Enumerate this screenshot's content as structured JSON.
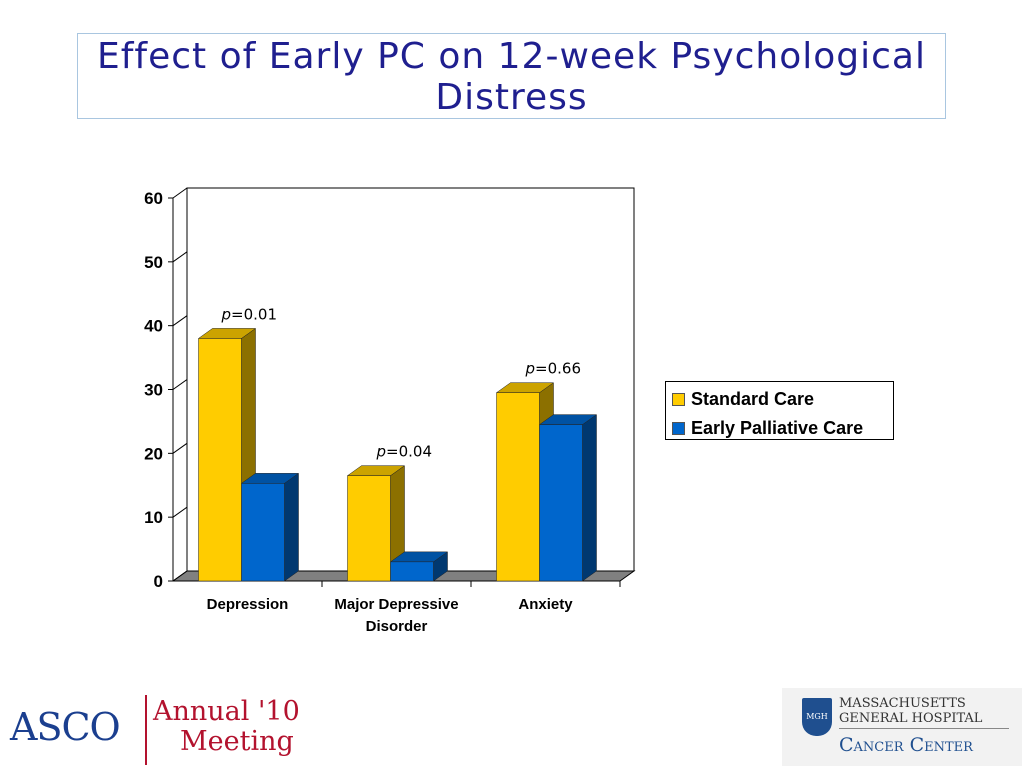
{
  "slide": {
    "title": "Effect of Early PC on 12-week Psychological Distress"
  },
  "chart_data": {
    "type": "bar",
    "title": "",
    "xlabel": "",
    "ylabel": "",
    "categories": [
      "Depression",
      "Major Depressive Disorder",
      "Anxiety"
    ],
    "category_lines": [
      [
        "Depression"
      ],
      [
        "Major Depressive",
        "Disorder"
      ],
      [
        "Anxiety"
      ]
    ],
    "series": [
      {
        "name": "Standard Care",
        "values": [
          38,
          16.5,
          29.5
        ],
        "color": "#ffcc00"
      },
      {
        "name": "Early Palliative Care",
        "values": [
          15.3,
          3,
          24.5
        ],
        "color": "#0066cc"
      }
    ],
    "annotations": [
      {
        "prefix": "p",
        "text": "=0.01"
      },
      {
        "prefix": "p",
        "text": "=0.04"
      },
      {
        "prefix": "p",
        "text": "=0.66"
      }
    ],
    "ylim": [
      0,
      60
    ],
    "yticks": [
      0,
      10,
      20,
      30,
      40,
      50,
      60
    ],
    "grid": false,
    "legend_position": "right",
    "style": "3d"
  },
  "footer": {
    "asco_logo_text": "ASCO",
    "meeting_line1": "Annual '10",
    "meeting_line2": "Meeting",
    "mgh_seal_text": "MGH",
    "mgh_line1": "MASSACHUSETTS",
    "mgh_line2": "GENERAL HOSPITAL",
    "mgh_line3": "Cancer Center"
  }
}
